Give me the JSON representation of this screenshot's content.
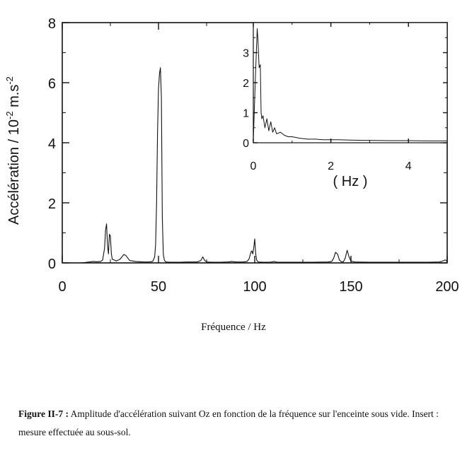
{
  "chart_data": [
    {
      "type": "line",
      "xlabel": "Fréquence / Hz",
      "ylabel_main": "Accélération / 10",
      "ylabel_exp": "-2",
      "ylabel_unit": " m.s",
      "ylabel_unit_exp": "-2",
      "xlim": [
        0,
        200
      ],
      "ylim": [
        0,
        8
      ],
      "xticks": [
        "0",
        "50",
        "100",
        "150",
        "200"
      ],
      "yticks": [
        "0",
        "2",
        "4",
        "6",
        "8"
      ],
      "series": [
        {
          "x": [
            0,
            10,
            14,
            16,
            18,
            20,
            21,
            22,
            22.5,
            23,
            23.5,
            24,
            24.5,
            25,
            25.5,
            26,
            27,
            28,
            30,
            32,
            33,
            35,
            38,
            42,
            45,
            47,
            48,
            48.5,
            49,
            49.5,
            50,
            50.5,
            51,
            51.5,
            52,
            52.5,
            53,
            53.5,
            54,
            56,
            60,
            65,
            70,
            72,
            73,
            74,
            75,
            78,
            82,
            86,
            88,
            90,
            94,
            96,
            97,
            98,
            98.5,
            99,
            99.5,
            100,
            100.5,
            101,
            101.5,
            102,
            104,
            108,
            110,
            112,
            120,
            130,
            138,
            140,
            141,
            142,
            143,
            144,
            145,
            146,
            147,
            148,
            149,
            150,
            152,
            160,
            170,
            180,
            190,
            196,
            198,
            199,
            200
          ],
          "y": [
            0,
            0,
            0.03,
            0.05,
            0.04,
            0.05,
            0.1,
            0.5,
            1.1,
            1.3,
            0.6,
            0.3,
            0.95,
            0.9,
            0.3,
            0.12,
            0.1,
            0.06,
            0.12,
            0.28,
            0.25,
            0.08,
            0.05,
            0.03,
            0.03,
            0.05,
            0.2,
            0.6,
            2.0,
            4.3,
            5.8,
            6.3,
            6.5,
            5.5,
            1.5,
            0.3,
            0.1,
            0.05,
            0.03,
            0.02,
            0.02,
            0.03,
            0.03,
            0.08,
            0.2,
            0.08,
            0.03,
            0.02,
            0.02,
            0.03,
            0.05,
            0.03,
            0.03,
            0.05,
            0.12,
            0.35,
            0.4,
            0.3,
            0.5,
            0.8,
            0.3,
            0.1,
            0.05,
            0.03,
            0.02,
            0.02,
            0.05,
            0.02,
            0.02,
            0.02,
            0.03,
            0.05,
            0.15,
            0.35,
            0.3,
            0.1,
            0.04,
            0.03,
            0.15,
            0.42,
            0.2,
            0.06,
            0.03,
            0.02,
            0.02,
            0.02,
            0.02,
            0.03,
            0.07,
            0.1,
            0.05
          ]
        }
      ]
    },
    {
      "type": "line",
      "xlabel": "( Hz )",
      "xlim": [
        0,
        5
      ],
      "ylim": [
        0,
        4
      ],
      "xticks": [
        "0",
        "2",
        "4"
      ],
      "yticks": [
        "0",
        "1",
        "2",
        "3"
      ],
      "series": [
        {
          "x": [
            0,
            0.05,
            0.1,
            0.12,
            0.15,
            0.18,
            0.2,
            0.22,
            0.25,
            0.3,
            0.35,
            0.4,
            0.45,
            0.5,
            0.55,
            0.6,
            0.7,
            0.8,
            0.9,
            1.0,
            1.2,
            1.4,
            1.6,
            1.8,
            2.0,
            2.2,
            2.5,
            2.8,
            3.0,
            3.5,
            4.0,
            4.5,
            5.0
          ],
          "y": [
            0.05,
            2.0,
            3.8,
            3.4,
            2.5,
            2.6,
            1.0,
            0.8,
            0.9,
            0.5,
            0.8,
            0.4,
            0.7,
            0.35,
            0.5,
            0.3,
            0.35,
            0.25,
            0.2,
            0.2,
            0.15,
            0.12,
            0.12,
            0.1,
            0.1,
            0.1,
            0.09,
            0.08,
            0.08,
            0.07,
            0.07,
            0.06,
            0.06
          ]
        }
      ]
    }
  ],
  "caption": {
    "label": "Figure II-7 :",
    "text": " Amplitude d'accélération suivant Oz en fonction de la fréquence sur l'enceinte sous vide. Insert : mesure effectuée au sous-sol."
  }
}
